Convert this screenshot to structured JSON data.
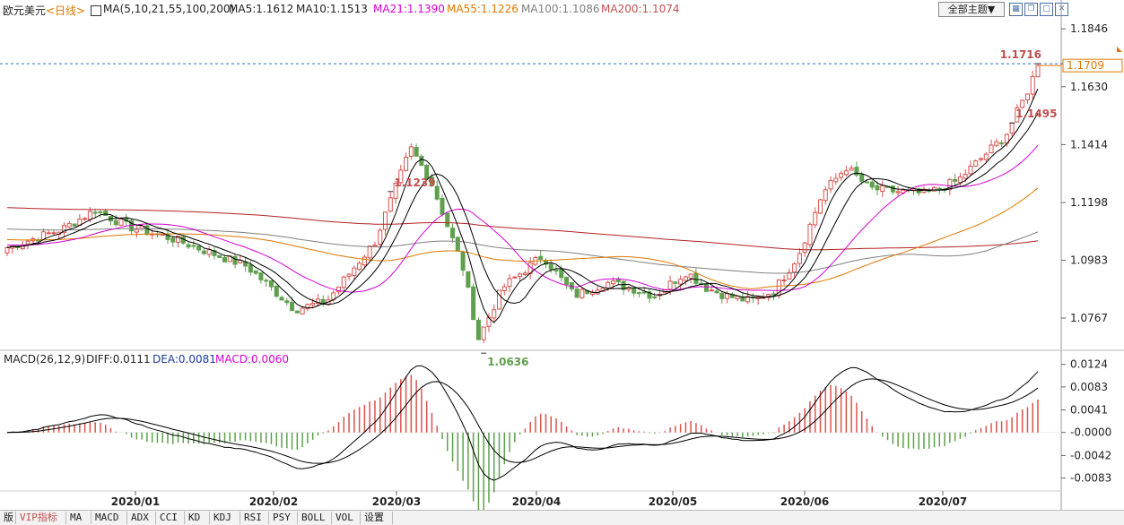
{
  "header": {
    "symbol": "欧元美元",
    "period": "<日线>",
    "ma_label": "MA(5,10,21,55,100,200)",
    "ma_items": [
      {
        "label": "MA5:1.1612",
        "color": "#000000"
      },
      {
        "label": "MA10:1.1513",
        "color": "#000000"
      },
      {
        "label": "MA21:1.1390",
        "color": "#d400d4"
      },
      {
        "label": "MA55:1.1226",
        "color": "#e07800"
      },
      {
        "label": "MA100:1.1086",
        "color": "#808080"
      },
      {
        "label": "MA200:1.1074",
        "color": "#c0504d"
      }
    ],
    "theme_button": "全部主题▼",
    "tool_icons": [
      "grid-icon",
      "restore-icon",
      "maximize-icon",
      "close-icon"
    ]
  },
  "macd_header": {
    "label": "MACD(26,12,9)",
    "diff": "DIFF:0.0111",
    "dea": "DEA:0.0081",
    "macd": "MACD:0.0060"
  },
  "bottom_tabs": [
    "版",
    "VIP指标",
    "MA",
    "MACD",
    "ADX",
    "CCI",
    "KD",
    "KDJ",
    "RSI",
    "PSY",
    "BOLL",
    "VOL",
    "设置"
  ],
  "colors": {
    "up": "#d9534f",
    "down": "#5fa04e",
    "ma5": "#000000",
    "ma10": "#000000",
    "ma21": "#d400d4",
    "ma55": "#e07800",
    "ma100": "#808080",
    "ma200": "#b22222",
    "diff": "#000000",
    "dea": "#000000",
    "price_line": "#2a6fbe",
    "current_price": "#e07800"
  },
  "chart_data": [
    {
      "type": "candlestick",
      "title": "欧元美元<日线>",
      "x_tick_labels": [
        "2020/01",
        "2020/02",
        "2020/03",
        "2020/04",
        "2020/05",
        "2020/06",
        "2020/07"
      ],
      "y_tick_labels": [
        "1.1846",
        "1.1630",
        "1.1414",
        "1.1198",
        "1.0983",
        "1.0767"
      ],
      "ylim": [
        1.065,
        1.188
      ],
      "annotations": [
        {
          "text": "1.1239",
          "value": 1.1239,
          "kind": "high"
        },
        {
          "text": "1.1495",
          "value": 1.1495,
          "kind": "high"
        },
        {
          "text": "1.0636",
          "value": 1.0636,
          "kind": "low"
        },
        {
          "text": "1.1716",
          "value": 1.1716,
          "kind": "high"
        }
      ],
      "current_price": "1.1709",
      "dashed_level": 1.1716,
      "ohlc_key_points": [
        {
          "date": "2019/12",
          "close": 1.107
        },
        {
          "date": "2020/01",
          "close": 1.117
        },
        {
          "date": "2020/02",
          "close": 1.08
        },
        {
          "date": "2020/03",
          "close": 1.14
        },
        {
          "date": "2020/03",
          "close": 1.07
        },
        {
          "date": "2020/04",
          "close": 1.088
        },
        {
          "date": "2020/05",
          "close": 1.082
        },
        {
          "date": "2020/06",
          "close": 1.133
        },
        {
          "date": "2020/07",
          "close": 1.1709
        }
      ]
    },
    {
      "type": "macd",
      "y_tick_labels": [
        "0.0124",
        "0.0083",
        "0.0041",
        "-0.0000",
        "-0.0042",
        "-0.0083"
      ],
      "ylim": [
        -0.0118,
        0.0135
      ],
      "series": [
        {
          "name": "DIFF",
          "last": 0.0111
        },
        {
          "name": "DEA",
          "last": 0.0081
        },
        {
          "name": "MACD",
          "last": 0.006
        }
      ]
    }
  ]
}
